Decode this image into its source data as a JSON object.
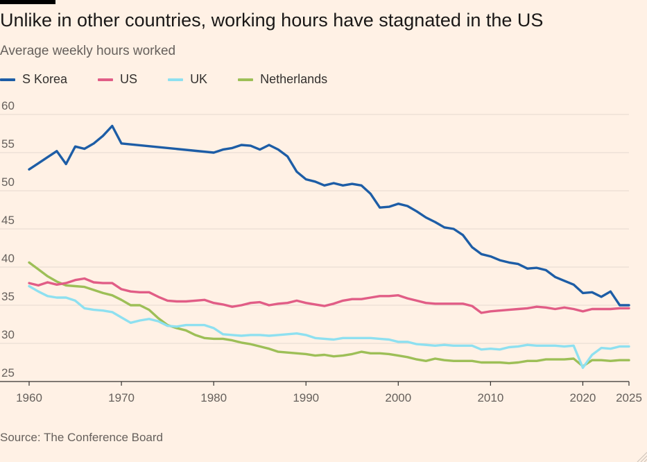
{
  "header": {
    "title": "Unlike in other countries, working hours have stagnated in the US",
    "subtitle": "Average weekly hours worked"
  },
  "footer": {
    "source": "Source: The Conference Board"
  },
  "chart_data": {
    "type": "line",
    "title": "Unlike in other countries, working hours have stagnated in the US",
    "subtitle": "Average weekly hours worked",
    "xlabel": "",
    "ylabel": "",
    "xlim": [
      1960,
      2025
    ],
    "ylim": [
      25,
      60
    ],
    "x_ticks": [
      1960,
      1970,
      1980,
      1990,
      2000,
      2010,
      2020,
      2025
    ],
    "y_ticks": [
      25,
      30,
      35,
      40,
      45,
      50,
      55,
      60
    ],
    "grid": "horizontal",
    "legend_position": "top-left",
    "series": [
      {
        "name": "S Korea",
        "color": "#1d5da6",
        "points": [
          [
            1960,
            52.8
          ],
          [
            1961,
            53.6
          ],
          [
            1962,
            54.4
          ],
          [
            1963,
            55.2
          ],
          [
            1964,
            53.5
          ],
          [
            1965,
            55.8
          ],
          [
            1966,
            55.5
          ],
          [
            1967,
            56.2
          ],
          [
            1968,
            57.2
          ],
          [
            1969,
            58.5
          ],
          [
            1970,
            56.2
          ],
          [
            1980,
            55.0
          ],
          [
            1981,
            55.4
          ],
          [
            1982,
            55.6
          ],
          [
            1983,
            56.0
          ],
          [
            1984,
            55.9
          ],
          [
            1985,
            55.4
          ],
          [
            1986,
            56.0
          ],
          [
            1987,
            55.4
          ],
          [
            1988,
            54.5
          ],
          [
            1989,
            52.5
          ],
          [
            1990,
            51.5
          ],
          [
            1991,
            51.2
          ],
          [
            1992,
            50.7
          ],
          [
            1993,
            51.0
          ],
          [
            1994,
            50.7
          ],
          [
            1995,
            50.9
          ],
          [
            1996,
            50.7
          ],
          [
            1997,
            49.6
          ],
          [
            1998,
            47.8
          ],
          [
            1999,
            47.9
          ],
          [
            2000,
            48.3
          ],
          [
            2001,
            48.0
          ],
          [
            2002,
            47.3
          ],
          [
            2003,
            46.5
          ],
          [
            2004,
            45.9
          ],
          [
            2005,
            45.2
          ],
          [
            2006,
            45.0
          ],
          [
            2007,
            44.2
          ],
          [
            2008,
            42.6
          ],
          [
            2009,
            41.7
          ],
          [
            2010,
            41.4
          ],
          [
            2011,
            40.9
          ],
          [
            2012,
            40.6
          ],
          [
            2013,
            40.4
          ],
          [
            2014,
            39.8
          ],
          [
            2015,
            39.9
          ],
          [
            2016,
            39.6
          ],
          [
            2017,
            38.7
          ],
          [
            2018,
            38.2
          ],
          [
            2019,
            37.7
          ],
          [
            2020,
            36.6
          ],
          [
            2021,
            36.7
          ],
          [
            2022,
            36.1
          ],
          [
            2023,
            36.8
          ],
          [
            2024,
            35.0
          ],
          [
            2025,
            35.0
          ]
        ]
      },
      {
        "name": "US",
        "color": "#e15d86",
        "points": [
          [
            1960,
            37.9
          ],
          [
            1961,
            37.6
          ],
          [
            1962,
            38.0
          ],
          [
            1963,
            37.7
          ],
          [
            1964,
            37.9
          ],
          [
            1965,
            38.3
          ],
          [
            1966,
            38.5
          ],
          [
            1967,
            38.0
          ],
          [
            1968,
            37.9
          ],
          [
            1969,
            37.9
          ],
          [
            1970,
            37.1
          ],
          [
            1971,
            36.8
          ],
          [
            1972,
            36.7
          ],
          [
            1973,
            36.7
          ],
          [
            1974,
            36.1
          ],
          [
            1975,
            35.6
          ],
          [
            1976,
            35.5
          ],
          [
            1977,
            35.5
          ],
          [
            1978,
            35.6
          ],
          [
            1979,
            35.7
          ],
          [
            1980,
            35.3
          ],
          [
            1981,
            35.1
          ],
          [
            1982,
            34.8
          ],
          [
            1983,
            35.0
          ],
          [
            1984,
            35.3
          ],
          [
            1985,
            35.4
          ],
          [
            1986,
            35.0
          ],
          [
            1987,
            35.2
          ],
          [
            1988,
            35.3
          ],
          [
            1989,
            35.6
          ],
          [
            1990,
            35.3
          ],
          [
            1991,
            35.1
          ],
          [
            1992,
            34.9
          ],
          [
            1993,
            35.2
          ],
          [
            1994,
            35.6
          ],
          [
            1995,
            35.8
          ],
          [
            1996,
            35.8
          ],
          [
            1997,
            36.0
          ],
          [
            1998,
            36.2
          ],
          [
            1999,
            36.2
          ],
          [
            2000,
            36.3
          ],
          [
            2001,
            35.9
          ],
          [
            2002,
            35.6
          ],
          [
            2003,
            35.3
          ],
          [
            2004,
            35.2
          ],
          [
            2005,
            35.2
          ],
          [
            2006,
            35.2
          ],
          [
            2007,
            35.2
          ],
          [
            2008,
            34.9
          ],
          [
            2009,
            34.0
          ],
          [
            2010,
            34.2
          ],
          [
            2011,
            34.3
          ],
          [
            2012,
            34.4
          ],
          [
            2013,
            34.5
          ],
          [
            2014,
            34.6
          ],
          [
            2015,
            34.8
          ],
          [
            2016,
            34.7
          ],
          [
            2017,
            34.5
          ],
          [
            2018,
            34.7
          ],
          [
            2019,
            34.5
          ],
          [
            2020,
            34.2
          ],
          [
            2021,
            34.5
          ],
          [
            2022,
            34.5
          ],
          [
            2023,
            34.5
          ],
          [
            2024,
            34.6
          ],
          [
            2025,
            34.6
          ]
        ]
      },
      {
        "name": "UK",
        "color": "#8ee0f0",
        "points": [
          [
            1960,
            37.5
          ],
          [
            1961,
            36.8
          ],
          [
            1962,
            36.2
          ],
          [
            1963,
            36.0
          ],
          [
            1964,
            36.0
          ],
          [
            1965,
            35.6
          ],
          [
            1966,
            34.6
          ],
          [
            1967,
            34.4
          ],
          [
            1968,
            34.3
          ],
          [
            1969,
            34.1
          ],
          [
            1970,
            33.4
          ],
          [
            1971,
            32.7
          ],
          [
            1972,
            33.0
          ],
          [
            1973,
            33.2
          ],
          [
            1974,
            32.9
          ],
          [
            1975,
            32.3
          ],
          [
            1976,
            32.2
          ],
          [
            1977,
            32.4
          ],
          [
            1978,
            32.4
          ],
          [
            1979,
            32.4
          ],
          [
            1980,
            32.0
          ],
          [
            1981,
            31.2
          ],
          [
            1982,
            31.1
          ],
          [
            1983,
            31.0
          ],
          [
            1984,
            31.1
          ],
          [
            1985,
            31.1
          ],
          [
            1986,
            31.0
          ],
          [
            1987,
            31.1
          ],
          [
            1988,
            31.2
          ],
          [
            1989,
            31.3
          ],
          [
            1990,
            31.1
          ],
          [
            1991,
            30.7
          ],
          [
            1992,
            30.6
          ],
          [
            1993,
            30.5
          ],
          [
            1994,
            30.7
          ],
          [
            1995,
            30.7
          ],
          [
            1996,
            30.7
          ],
          [
            1997,
            30.7
          ],
          [
            1998,
            30.6
          ],
          [
            1999,
            30.5
          ],
          [
            2000,
            30.2
          ],
          [
            2001,
            30.2
          ],
          [
            2002,
            29.9
          ],
          [
            2003,
            29.8
          ],
          [
            2004,
            29.7
          ],
          [
            2005,
            29.8
          ],
          [
            2006,
            29.7
          ],
          [
            2007,
            29.7
          ],
          [
            2008,
            29.7
          ],
          [
            2009,
            29.2
          ],
          [
            2010,
            29.3
          ],
          [
            2011,
            29.2
          ],
          [
            2012,
            29.5
          ],
          [
            2013,
            29.6
          ],
          [
            2014,
            29.8
          ],
          [
            2015,
            29.7
          ],
          [
            2016,
            29.7
          ],
          [
            2017,
            29.7
          ],
          [
            2018,
            29.6
          ],
          [
            2019,
            29.7
          ],
          [
            2020,
            26.8
          ],
          [
            2021,
            28.5
          ],
          [
            2022,
            29.4
          ],
          [
            2023,
            29.3
          ],
          [
            2024,
            29.6
          ],
          [
            2025,
            29.6
          ]
        ]
      },
      {
        "name": "Netherlands",
        "color": "#9dbf57",
        "points": [
          [
            1960,
            40.6
          ],
          [
            1961,
            39.7
          ],
          [
            1962,
            38.8
          ],
          [
            1963,
            38.1
          ],
          [
            1964,
            37.6
          ],
          [
            1965,
            37.5
          ],
          [
            1966,
            37.4
          ],
          [
            1967,
            37.0
          ],
          [
            1968,
            36.6
          ],
          [
            1969,
            36.3
          ],
          [
            1970,
            35.7
          ],
          [
            1971,
            35.0
          ],
          [
            1972,
            35.0
          ],
          [
            1973,
            34.4
          ],
          [
            1974,
            33.3
          ],
          [
            1975,
            32.4
          ],
          [
            1976,
            32.0
          ],
          [
            1977,
            31.7
          ],
          [
            1978,
            31.1
          ],
          [
            1979,
            30.7
          ],
          [
            1980,
            30.6
          ],
          [
            1981,
            30.6
          ],
          [
            1982,
            30.4
          ],
          [
            1983,
            30.1
          ],
          [
            1984,
            29.9
          ],
          [
            1985,
            29.6
          ],
          [
            1986,
            29.3
          ],
          [
            1987,
            28.9
          ],
          [
            1988,
            28.8
          ],
          [
            1989,
            28.7
          ],
          [
            1990,
            28.6
          ],
          [
            1991,
            28.4
          ],
          [
            1992,
            28.5
          ],
          [
            1993,
            28.3
          ],
          [
            1994,
            28.4
          ],
          [
            1995,
            28.6
          ],
          [
            1996,
            28.9
          ],
          [
            1997,
            28.7
          ],
          [
            1998,
            28.7
          ],
          [
            1999,
            28.6
          ],
          [
            2000,
            28.4
          ],
          [
            2001,
            28.2
          ],
          [
            2002,
            27.9
          ],
          [
            2003,
            27.7
          ],
          [
            2004,
            28.0
          ],
          [
            2005,
            27.8
          ],
          [
            2006,
            27.7
          ],
          [
            2007,
            27.7
          ],
          [
            2008,
            27.7
          ],
          [
            2009,
            27.5
          ],
          [
            2010,
            27.5
          ],
          [
            2011,
            27.5
          ],
          [
            2012,
            27.4
          ],
          [
            2013,
            27.5
          ],
          [
            2014,
            27.7
          ],
          [
            2015,
            27.7
          ],
          [
            2016,
            27.9
          ],
          [
            2017,
            27.9
          ],
          [
            2018,
            27.9
          ],
          [
            2019,
            28.0
          ],
          [
            2020,
            27.0
          ],
          [
            2021,
            27.8
          ],
          [
            2022,
            27.8
          ],
          [
            2023,
            27.7
          ],
          [
            2024,
            27.8
          ],
          [
            2025,
            27.8
          ]
        ]
      }
    ]
  }
}
